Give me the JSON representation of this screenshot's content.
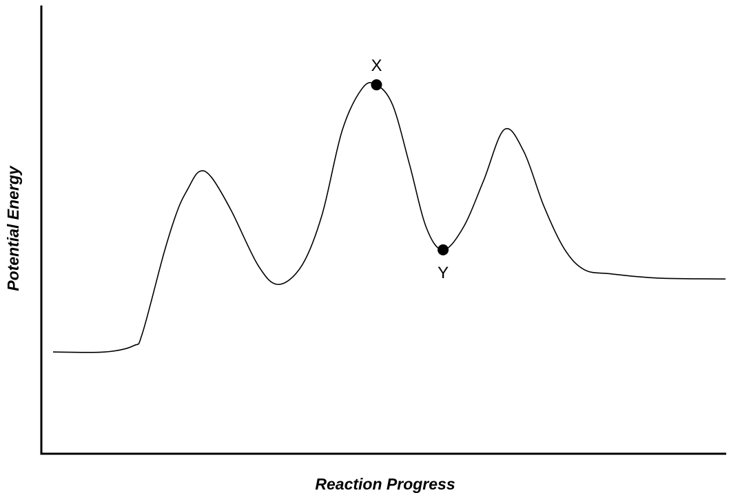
{
  "chart_data": {
    "type": "line",
    "title": "",
    "xlabel": "Reaction Progress",
    "ylabel": "Potential Energy",
    "grid": false,
    "legend": "none",
    "ticks_shown": false,
    "xlim": [
      0,
      100
    ],
    "ylim": [
      0,
      100
    ],
    "series": [
      {
        "color": "#000000",
        "points": [
          {
            "x": 0,
            "y": 21.5
          },
          {
            "x": 7.7,
            "y": 21.5
          },
          {
            "x": 12,
            "y": 23
          },
          {
            "x": 13.3,
            "y": 26
          },
          {
            "x": 16.5,
            "y": 45
          },
          {
            "x": 18.5,
            "y": 55
          },
          {
            "x": 20,
            "y": 60
          },
          {
            "x": 21.7,
            "y": 64.2
          },
          {
            "x": 23.5,
            "y": 63
          },
          {
            "x": 26.5,
            "y": 55
          },
          {
            "x": 30.5,
            "y": 42
          },
          {
            "x": 33.5,
            "y": 37.5
          },
          {
            "x": 37,
            "y": 42
          },
          {
            "x": 40,
            "y": 54
          },
          {
            "x": 43,
            "y": 74
          },
          {
            "x": 46,
            "y": 84
          },
          {
            "x": 48.1,
            "y": 84.8
          },
          {
            "x": 50.5,
            "y": 80
          },
          {
            "x": 53,
            "y": 66
          },
          {
            "x": 55.5,
            "y": 51
          },
          {
            "x": 58,
            "y": 45.7
          },
          {
            "x": 61,
            "y": 51
          },
          {
            "x": 64,
            "y": 62
          },
          {
            "x": 67.1,
            "y": 74.2
          },
          {
            "x": 70,
            "y": 69
          },
          {
            "x": 73,
            "y": 56
          },
          {
            "x": 76,
            "y": 46
          },
          {
            "x": 79,
            "y": 41
          },
          {
            "x": 83,
            "y": 40
          },
          {
            "x": 90,
            "y": 39
          },
          {
            "x": 100,
            "y": 38.8
          }
        ]
      }
    ],
    "annotations": [
      {
        "label": "X",
        "x": 48.1,
        "y": 84.8,
        "label_position": "above"
      },
      {
        "label": "Y",
        "x": 58,
        "y": 45.7,
        "label_position": "below"
      }
    ]
  }
}
